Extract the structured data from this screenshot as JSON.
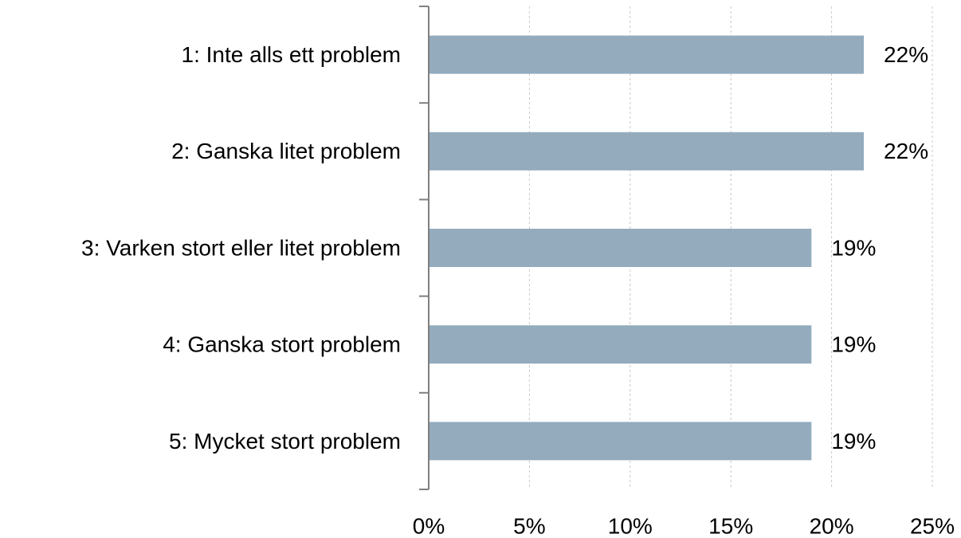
{
  "chart_data": {
    "type": "bar",
    "orientation": "horizontal",
    "categories": [
      "1: Inte alls ett problem",
      "2: Ganska litet problem",
      "3: Varken stort eller litet problem",
      "4: Ganska stort problem",
      "5: Mycket stort problem"
    ],
    "values": [
      21.6,
      21.6,
      19.0,
      19.0,
      19.0
    ],
    "value_labels": [
      "22%",
      "22%",
      "19%",
      "19%",
      "19%"
    ],
    "color": "#93abbd",
    "xlim": [
      0,
      25
    ],
    "xticks": [
      {
        "value": 0,
        "label": "0%"
      },
      {
        "value": 5,
        "label": "5%"
      },
      {
        "value": 10,
        "label": "10%"
      },
      {
        "value": 15,
        "label": "15%"
      },
      {
        "value": 20,
        "label": "20%"
      },
      {
        "value": 25,
        "label": "25%"
      }
    ],
    "grid": true
  }
}
